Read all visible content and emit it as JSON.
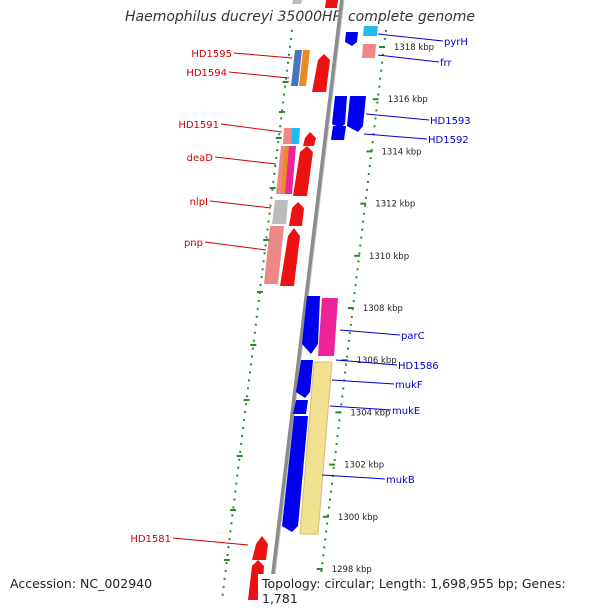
{
  "title": "Haemophilus ducreyi 35000HP, complete genome",
  "footer": {
    "accession": "Accession: NC_002940",
    "topology": "Topology: circular; Length: 1,698,955 bp; Genes: 1,781"
  },
  "colors": {
    "forward_label": "#0000cc",
    "reverse_label": "#cc0000",
    "backbone": "#8c8c8c",
    "tick_marks": "#2a8a2a"
  },
  "ticks": [
    {
      "label": "1318 kbp",
      "pos_kbp": 1318
    },
    {
      "label": "1316 kbp",
      "pos_kbp": 1316
    },
    {
      "label": "1314 kbp",
      "pos_kbp": 1314
    },
    {
      "label": "1312 kbp",
      "pos_kbp": 1312
    },
    {
      "label": "1310 kbp",
      "pos_kbp": 1310
    },
    {
      "label": "1308 kbp",
      "pos_kbp": 1308
    },
    {
      "label": "1306 kbp",
      "pos_kbp": 1306
    },
    {
      "label": "1304 kbp",
      "pos_kbp": 1304
    },
    {
      "label": "1302 kbp",
      "pos_kbp": 1302
    },
    {
      "label": "1300 kbp",
      "pos_kbp": 1300
    },
    {
      "label": "1298 kbp",
      "pos_kbp": 1298
    }
  ],
  "forward_labels": [
    "pyrH",
    "frr",
    "HD1593",
    "HD1592",
    "parC",
    "HD1586",
    "mukF",
    "mukE",
    "mukB"
  ],
  "reverse_labels": [
    "HD1595",
    "HD1594",
    "HD1591",
    "deaD",
    "nlpI",
    "pnp",
    "HD1581"
  ]
}
